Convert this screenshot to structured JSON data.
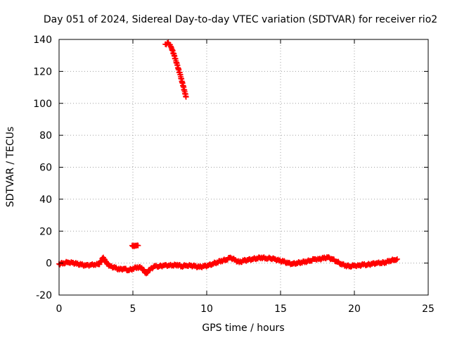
{
  "chart_data": {
    "type": "scatter",
    "title": "Day 051 of 2024, Sidereal Day-to-day VTEC variation (SDTVAR) for receiver rio2",
    "xlabel": "GPS time / hours",
    "ylabel": "SDTVAR / TECUs",
    "xlim": [
      0,
      25
    ],
    "ylim": [
      -20,
      140
    ],
    "xticks": [
      0,
      5,
      10,
      15,
      20,
      25
    ],
    "yticks": [
      -20,
      0,
      20,
      40,
      60,
      80,
      100,
      120,
      140
    ],
    "xtick_labels": [
      "0",
      "5",
      "10",
      "15",
      "20",
      "25"
    ],
    "ytick_labels": [
      "-20",
      "0",
      "20",
      "40",
      "60",
      "80",
      "100",
      "120",
      "140"
    ],
    "grid": true,
    "legend": "none",
    "marker_color": "#ff0000",
    "series": [
      {
        "segment": "main",
        "x": [
          0.0,
          0.3,
          0.6,
          0.9,
          1.2,
          1.5,
          1.8,
          2.1,
          2.4,
          2.7,
          3.0,
          3.1,
          3.25,
          3.5,
          3.8,
          4.1,
          4.4,
          4.7,
          5.0,
          5.3,
          5.6,
          5.9,
          6.2,
          6.5,
          6.8,
          7.1,
          7.4,
          7.7,
          8.0,
          8.3,
          8.6,
          8.9,
          9.2,
          9.5,
          9.8,
          10.1,
          10.4,
          10.7,
          11.0,
          11.3,
          11.6,
          11.9,
          12.2,
          12.5,
          12.8,
          13.1,
          13.4,
          13.7,
          14.0,
          14.3,
          14.6,
          14.9,
          15.2,
          15.5,
          15.8,
          16.1,
          16.4,
          16.7,
          17.0,
          17.3,
          17.6,
          17.9,
          18.2,
          18.5,
          18.8,
          19.1,
          19.4,
          19.7,
          20.0,
          20.3,
          20.6,
          20.9,
          21.2,
          21.5,
          21.8,
          22.1,
          22.4,
          22.7,
          22.9
        ],
        "y": [
          -0.5,
          0.0,
          0.5,
          0.3,
          -0.5,
          -1.0,
          -1.5,
          -1.2,
          -1.0,
          -0.8,
          3.5,
          2.0,
          -0.5,
          -2.0,
          -3.0,
          -4.0,
          -3.5,
          -4.5,
          -3.5,
          -2.5,
          -3.0,
          -6.5,
          -3.5,
          -2.0,
          -2.0,
          -1.5,
          -1.5,
          -1.5,
          -1.0,
          -2.0,
          -1.5,
          -1.5,
          -2.0,
          -2.5,
          -2.0,
          -1.5,
          -0.5,
          0.5,
          1.5,
          2.0,
          3.5,
          2.0,
          0.5,
          1.5,
          2.0,
          2.5,
          3.0,
          3.5,
          3.0,
          3.0,
          2.5,
          1.5,
          1.0,
          0.0,
          -0.5,
          0.0,
          0.5,
          1.0,
          1.5,
          2.5,
          2.5,
          3.0,
          3.5,
          2.5,
          1.0,
          -0.5,
          -1.5,
          -2.0,
          -1.5,
          -1.5,
          -1.0,
          -1.0,
          -0.5,
          0.0,
          0.0,
          0.5,
          1.5,
          2.0,
          2.5
        ]
      },
      {
        "segment": "descent",
        "x": [
          7.2,
          7.4,
          7.6,
          7.8,
          8.0,
          8.2,
          8.4,
          8.6
        ],
        "y": [
          137.0,
          138.0,
          135.0,
          130.0,
          124.0,
          118.0,
          111.0,
          104.0
        ]
      },
      {
        "segment": "isolated",
        "x": [
          4.95,
          5.05,
          5.15,
          5.25,
          5.35
        ],
        "y": [
          11.0,
          11.0,
          11.0,
          11.0,
          11.0
        ]
      }
    ]
  }
}
